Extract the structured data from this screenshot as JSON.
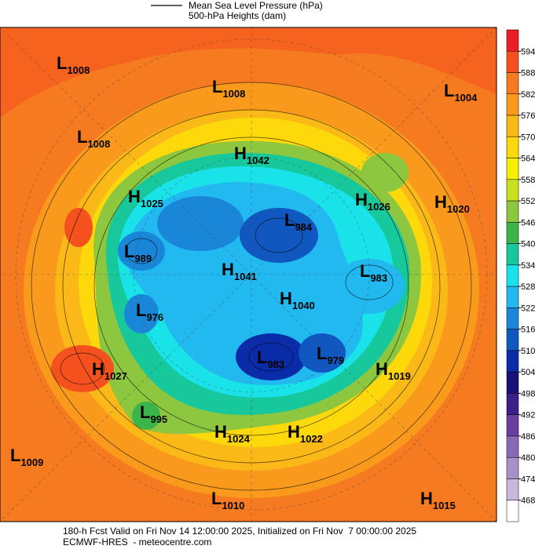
{
  "header": {
    "legend": [
      "Mean Sea Level Pressure (hPa)",
      "500-hPa Heights (dam)"
    ]
  },
  "colorbar": {
    "ticks": [
      594,
      588,
      582,
      576,
      570,
      564,
      558,
      552,
      546,
      540,
      534,
      528,
      522,
      516,
      510,
      504,
      498,
      492,
      486,
      480,
      474,
      468
    ],
    "colors": [
      "#ee1c25",
      "#f4511e",
      "#f57a20",
      "#f99a1c",
      "#fbb917",
      "#fdd90c",
      "#f6f000",
      "#c9e020",
      "#8dc63f",
      "#3bb54a",
      "#16c89c",
      "#19e3e8",
      "#22b8f0",
      "#1a86d8",
      "#1058c0",
      "#0a2ca8",
      "#1a1078",
      "#3b1f8a",
      "#6a3ea0",
      "#8a68b4",
      "#a890c8",
      "#c8b8dc",
      "#ffffff"
    ]
  },
  "centers": [
    {
      "kind": "L",
      "value": 1008
    },
    {
      "kind": "L",
      "value": 1008
    },
    {
      "kind": "L",
      "value": 1004
    },
    {
      "kind": "L",
      "value": 1008
    },
    {
      "kind": "H",
      "value": 1042
    },
    {
      "kind": "H",
      "value": 1025
    },
    {
      "kind": "H",
      "value": 1026
    },
    {
      "kind": "H",
      "value": 1020
    },
    {
      "kind": "L",
      "value": 984
    },
    {
      "kind": "L",
      "value": 989
    },
    {
      "kind": "H",
      "value": 1041
    },
    {
      "kind": "L",
      "value": 983
    },
    {
      "kind": "H",
      "value": 1040
    },
    {
      "kind": "L",
      "value": 976
    },
    {
      "kind": "L",
      "value": 983
    },
    {
      "kind": "L",
      "value": 979
    },
    {
      "kind": "H",
      "value": 1019
    },
    {
      "kind": "H",
      "value": 1027
    },
    {
      "kind": "L",
      "value": 995
    },
    {
      "kind": "H",
      "value": 1024
    },
    {
      "kind": "H",
      "value": 1022
    },
    {
      "kind": "L",
      "value": 1009
    },
    {
      "kind": "L",
      "value": 1010
    },
    {
      "kind": "H",
      "value": 1015
    }
  ],
  "footer": [
    "180-h Fcst Valid on Fri Nov 14 12:00:00 2025, Initialized on Fri Nov  7 00:00:00 2025",
    "ECMWF-HRES  - meteocentre.com"
  ]
}
